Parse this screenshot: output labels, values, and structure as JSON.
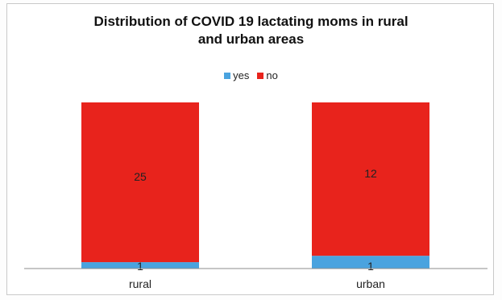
{
  "chart_data": {
    "type": "bar",
    "stacked": true,
    "title_line1": "Distribution of COVID 19  lactating moms in rural",
    "title_line2": "and urban areas",
    "categories": [
      "rural",
      "urban"
    ],
    "series": [
      {
        "name": "yes",
        "values": [
          1,
          1
        ],
        "color": "#4aa3df"
      },
      {
        "name": "no",
        "values": [
          25,
          12
        ],
        "color": "#e8231c"
      }
    ],
    "legend_position": "top",
    "percent_stacked": true,
    "grid": false
  }
}
